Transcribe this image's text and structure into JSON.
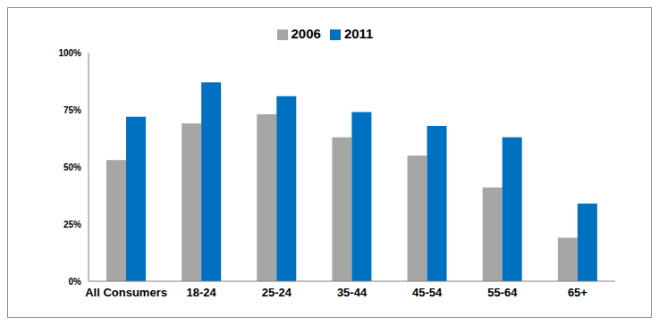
{
  "chart_data": {
    "type": "bar",
    "categories": [
      "All Consumers",
      "18-24",
      "25-24",
      "35-44",
      "45-54",
      "55-64",
      "65+"
    ],
    "series": [
      {
        "name": "2006",
        "color": "#a6a6a6",
        "values": [
          53,
          69,
          73,
          63,
          55,
          41,
          19
        ]
      },
      {
        "name": "2011",
        "color": "#0070c0",
        "values": [
          72,
          87,
          81,
          74,
          68,
          63,
          34
        ]
      }
    ],
    "ylim": [
      0,
      100
    ],
    "yticks": [
      {
        "value": 0,
        "label": "0%"
      },
      {
        "value": 25,
        "label": "25%"
      },
      {
        "value": 50,
        "label": "50%"
      },
      {
        "value": 75,
        "label": "75%"
      },
      {
        "value": 100,
        "label": "100%"
      }
    ],
    "grid": false,
    "legend": "top"
  }
}
